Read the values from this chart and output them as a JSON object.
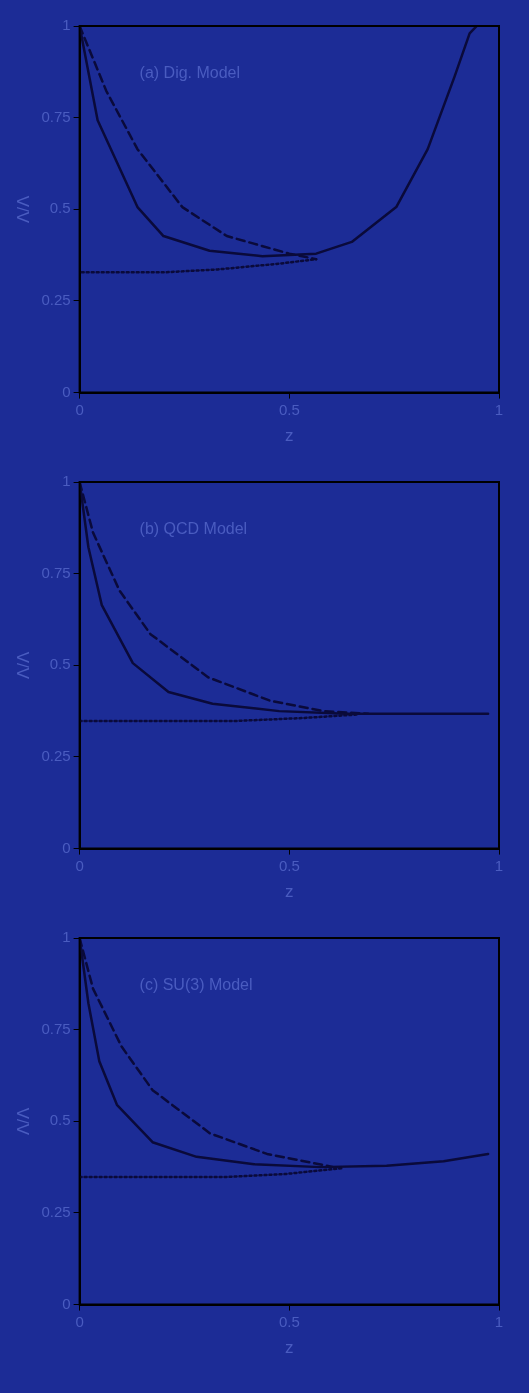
{
  "chart_data": [
    {
      "type": "line",
      "xlabel": "z",
      "ylabel": "Λ/Λ",
      "xlim": [
        0,
        1
      ],
      "ylim": [
        0,
        1
      ],
      "xticks": [
        0,
        0.5,
        1
      ],
      "yticks": [
        0,
        0.25,
        0.5,
        0.75,
        1
      ],
      "grid": false,
      "legend": false,
      "marker": "none",
      "annotations": [
        "(a) Dig. Model"
      ],
      "series": [
        {
          "color": "#0a0a3a",
          "line_style": "solid",
          "x": [
            0,
            0.043,
            0.138,
            0.2,
            0.31,
            0.436,
            0.564,
            0.649,
            0.755,
            0.83,
            0.894,
            0.93,
            0.947
          ],
          "values": [
            1,
            0.743,
            0.506,
            0.427,
            0.387,
            0.372,
            0.379,
            0.411,
            0.506,
            0.664,
            0.862,
            0.98,
            1
          ]
        },
        {
          "color": "#0a0a3a",
          "line_style": "dashed",
          "x": [
            0,
            0.064,
            0.138,
            0.245,
            0.351,
            0.5,
            0.564
          ],
          "values": [
            1,
            0.822,
            0.664,
            0.506,
            0.427,
            0.379,
            0.364
          ]
        },
        {
          "color": "#0a0a3a",
          "line_style": "dotted",
          "x": [
            0.005,
            0.2,
            0.33,
            0.479,
            0.564
          ],
          "values": [
            0.328,
            0.328,
            0.336,
            0.352,
            0.364
          ]
        }
      ]
    },
    {
      "type": "line",
      "xlabel": "z",
      "ylabel": "Λ/Λ",
      "xlim": [
        0,
        1
      ],
      "ylim": [
        0,
        1
      ],
      "xticks": [
        0,
        0.5,
        1
      ],
      "yticks": [
        0,
        0.25,
        0.5,
        0.75,
        1
      ],
      "grid": false,
      "legend": false,
      "marker": "none",
      "annotations": [
        "(b) QCD Model"
      ],
      "series": [
        {
          "color": "#0a0a3a",
          "line_style": "solid",
          "x": [
            0,
            0.021,
            0.053,
            0.127,
            0.212,
            0.317,
            0.476,
            0.635,
            0.794,
            0.974
          ],
          "values": [
            1,
            0.822,
            0.664,
            0.506,
            0.427,
            0.395,
            0.375,
            0.368,
            0.368,
            0.368
          ]
        },
        {
          "color": "#0a0a3a",
          "line_style": "dashed",
          "x": [
            0,
            0.032,
            0.095,
            0.169,
            0.307,
            0.455,
            0.582,
            0.688
          ],
          "values": [
            1,
            0.862,
            0.704,
            0.585,
            0.467,
            0.403,
            0.375,
            0.368
          ]
        },
        {
          "color": "#0a0a3a",
          "line_style": "dotted",
          "x": [
            0,
            0.37,
            0.529,
            0.667
          ],
          "values": [
            0.348,
            0.348,
            0.356,
            0.366
          ]
        }
      ]
    },
    {
      "type": "line",
      "xlabel": "z",
      "ylabel": "Λ/Λ",
      "xlim": [
        0,
        1
      ],
      "ylim": [
        0,
        1
      ],
      "xticks": [
        0,
        0.5,
        1
      ],
      "yticks": [
        0,
        0.25,
        0.5,
        0.75,
        1
      ],
      "grid": false,
      "legend": false,
      "marker": "none",
      "annotations": [
        "(c) SU(3) Model"
      ],
      "series": [
        {
          "color": "#0a0a3a",
          "line_style": "solid",
          "x": [
            0,
            0.021,
            0.047,
            0.089,
            0.174,
            0.279,
            0.416,
            0.574,
            0.732,
            0.868,
            0.974
          ],
          "values": [
            1,
            0.822,
            0.664,
            0.545,
            0.443,
            0.403,
            0.383,
            0.375,
            0.379,
            0.391,
            0.411
          ]
        },
        {
          "color": "#0a0a3a",
          "line_style": "dashed",
          "x": [
            0,
            0.032,
            0.1,
            0.174,
            0.311,
            0.447,
            0.553,
            0.605
          ],
          "values": [
            1,
            0.862,
            0.704,
            0.585,
            0.467,
            0.411,
            0.387,
            0.375
          ]
        },
        {
          "color": "#0a0a3a",
          "line_style": "dotted",
          "x": [
            0,
            0.35,
            0.489,
            0.626
          ],
          "values": [
            0.348,
            0.348,
            0.356,
            0.372
          ]
        }
      ]
    }
  ]
}
